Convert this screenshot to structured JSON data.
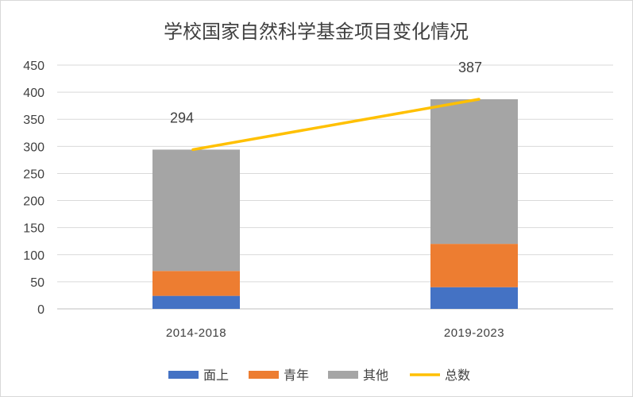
{
  "chart_data": {
    "type": "bar",
    "stacked": true,
    "title": "学校国家自然科学基金项目变化情况",
    "categories": [
      "2014-2018",
      "2019-2023"
    ],
    "series": [
      {
        "name": "面上",
        "values": [
          24,
          40
        ],
        "color": "#4472c4",
        "kind": "bar"
      },
      {
        "name": "青年",
        "values": [
          46,
          80
        ],
        "color": "#ed7d31",
        "kind": "bar"
      },
      {
        "name": "其他",
        "values": [
          224,
          267
        ],
        "color": "#a5a5a5",
        "kind": "bar"
      },
      {
        "name": "总数",
        "values": [
          294,
          387
        ],
        "color": "#ffc000",
        "kind": "line"
      }
    ],
    "data_labels": [
      "294",
      "387"
    ],
    "ylim": [
      0,
      450
    ],
    "yticks": [
      "0",
      "50",
      "100",
      "150",
      "200",
      "250",
      "300",
      "350",
      "400",
      "450"
    ],
    "grid": true,
    "legend_position": "bottom"
  }
}
